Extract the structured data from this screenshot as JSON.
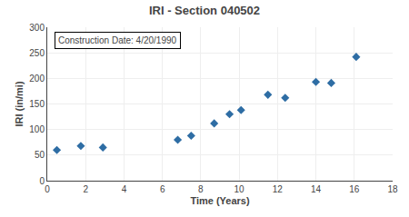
{
  "chart_data": {
    "type": "scatter",
    "title": "IRI - Section 040502",
    "xlabel": "Time (Years)",
    "ylabel": "IRI (in/mi)",
    "annotation": "Construction Date: 4/20/1990",
    "x": [
      0.5,
      1.75,
      2.9,
      6.8,
      7.5,
      8.7,
      9.5,
      10.1,
      11.5,
      12.4,
      14.0,
      14.8,
      16.1
    ],
    "values": [
      60,
      68,
      65,
      80,
      88,
      112,
      130,
      138,
      168,
      162,
      193,
      191,
      242
    ],
    "color": "#2E6DA4",
    "marker": "diamond",
    "xlim": [
      0,
      18
    ],
    "ylim": [
      0,
      300
    ],
    "xticks": [
      0,
      2,
      4,
      6,
      8,
      10,
      12,
      14,
      16,
      18
    ],
    "yticks": [
      0,
      50,
      100,
      150,
      200,
      250,
      300
    ],
    "grid": true
  }
}
